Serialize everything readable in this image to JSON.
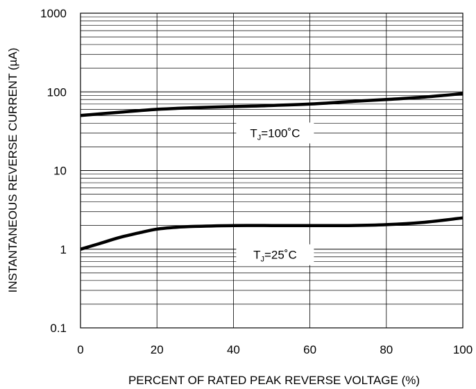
{
  "chart_data": {
    "type": "line",
    "title": "",
    "xlabel": "PERCENT OF RATED PEAK REVERSE VOLTAGE (%)",
    "ylabel": "INSTANTANEOUS REVERSE CURRENT (µA)",
    "xlim": [
      0,
      100
    ],
    "ylim": [
      0.1,
      1000
    ],
    "y_scale": "log",
    "grid": true,
    "x_ticks": [
      "0",
      "20",
      "40",
      "60",
      "80",
      "100"
    ],
    "y_ticks": [
      "0.1",
      "1",
      "10",
      "100",
      "1000"
    ],
    "x_tick_values": [
      0,
      20,
      40,
      60,
      80,
      100
    ],
    "y_tick_values": [
      0.1,
      1,
      10,
      100,
      1000
    ],
    "series": [
      {
        "name": "TJ=100°C",
        "x": [
          0,
          10,
          20,
          30,
          40,
          50,
          60,
          70,
          80,
          90,
          100
        ],
        "y": [
          50,
          55,
          60,
          63,
          65,
          67,
          70,
          75,
          80,
          86,
          95
        ]
      },
      {
        "name": "TJ=25°C",
        "x": [
          0,
          5,
          10,
          15,
          20,
          25,
          30,
          40,
          50,
          60,
          70,
          80,
          90,
          100
        ],
        "y": [
          1.0,
          1.18,
          1.4,
          1.6,
          1.8,
          1.9,
          1.95,
          2.0,
          2.0,
          2.0,
          2.0,
          2.05,
          2.2,
          2.5
        ]
      }
    ],
    "annotations": [
      {
        "text_main": "T",
        "text_sub": "J",
        "text_rest": "=100˚C",
        "x": 40,
        "y": 30
      },
      {
        "text_main": "T",
        "text_sub": "J",
        "text_rest": "=25˚C",
        "x": 40,
        "y": 0.85
      }
    ]
  },
  "colors": {
    "line": "#000000",
    "grid": "#000000",
    "background": "#ffffff"
  }
}
